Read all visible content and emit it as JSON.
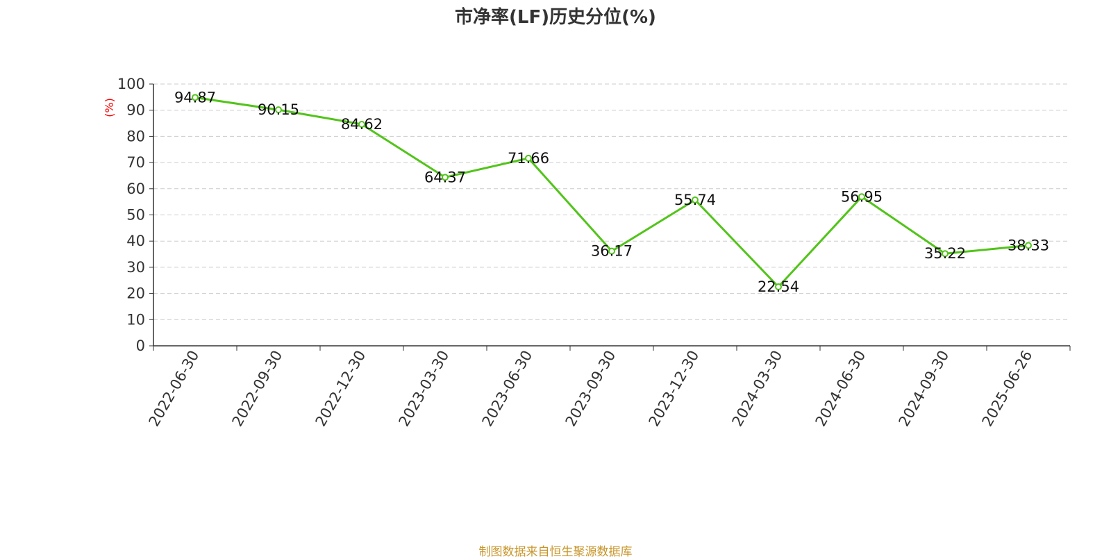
{
  "chart_data": {
    "type": "line",
    "title": "市净率(LF)历史分位(%)",
    "ylabel": "(%)",
    "xlabel": "",
    "categories": [
      "2022-06-30",
      "2022-09-30",
      "2022-12-30",
      "2023-03-30",
      "2023-06-30",
      "2023-09-30",
      "2023-12-30",
      "2024-03-30",
      "2024-06-30",
      "2024-09-30",
      "2025-06-26"
    ],
    "series": [
      {
        "values": [
          94.87,
          90.15,
          84.62,
          64.37,
          71.66,
          36.17,
          55.74,
          22.54,
          56.95,
          35.22,
          38.33
        ]
      }
    ],
    "data_labels": [
      "94.87",
      "90.15",
      "84.62",
      "64.37",
      "71.66",
      "36.17",
      "55.74",
      "22.54",
      "56.95",
      "35.22",
      "38.33"
    ],
    "ylim": [
      0,
      100
    ],
    "yticks": [
      0,
      10,
      20,
      30,
      40,
      50,
      60,
      70,
      80,
      90,
      100
    ],
    "grid": true,
    "legend": "none",
    "colors": {
      "line": "#52c41a",
      "grid": "#cccccc",
      "axis": "#333333",
      "ylabel": "#ff0000"
    }
  },
  "footer": {
    "source": "制图数据来自恒生聚源数据库"
  }
}
